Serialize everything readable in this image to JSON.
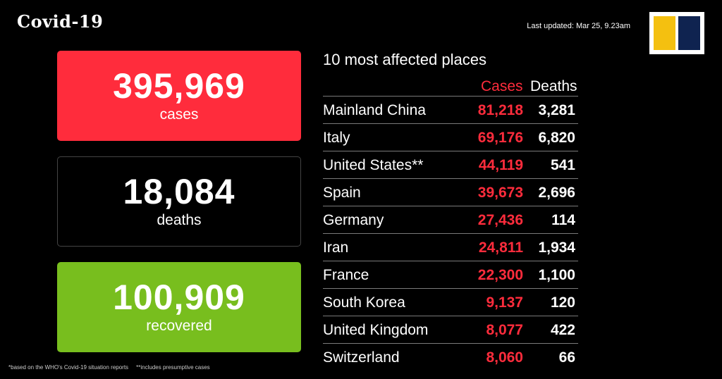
{
  "header": {
    "title": "Covid-19",
    "last_updated": "Last updated: Mar 25, 9.23am"
  },
  "summary": {
    "cases": {
      "value": "395,969",
      "label": "cases",
      "color": "#ff2c3c"
    },
    "deaths": {
      "value": "18,084",
      "label": "deaths",
      "color": "#000000"
    },
    "recovered": {
      "value": "100,909",
      "label": "recovered",
      "color": "#78be1e"
    }
  },
  "table": {
    "title": "10 most affected places",
    "col_cases": "Cases",
    "col_deaths": "Deaths",
    "rows": [
      {
        "place": "Mainland China",
        "cases": "81,218",
        "deaths": "3,281"
      },
      {
        "place": "Italy",
        "cases": "69,176",
        "deaths": "6,820"
      },
      {
        "place": "United States**",
        "cases": "44,119",
        "deaths": "541"
      },
      {
        "place": "Spain",
        "cases": "39,673",
        "deaths": "2,696"
      },
      {
        "place": "Germany",
        "cases": "27,436",
        "deaths": "114"
      },
      {
        "place": "Iran",
        "cases": "24,811",
        "deaths": "1,934"
      },
      {
        "place": "France",
        "cases": "22,300",
        "deaths": "1,100"
      },
      {
        "place": "South Korea",
        "cases": "9,137",
        "deaths": "120"
      },
      {
        "place": "United Kingdom",
        "cases": "8,077",
        "deaths": "422"
      },
      {
        "place": "Switzerland",
        "cases": "8,060",
        "deaths": "66"
      }
    ]
  },
  "footnote": "*based on the WHO's Covid-19 situation reports     **includes presumptive cases",
  "colors": {
    "accent_red": "#ff2c3c",
    "accent_green": "#78be1e",
    "logo_yellow": "#f4c010",
    "logo_navy": "#0f2350"
  }
}
